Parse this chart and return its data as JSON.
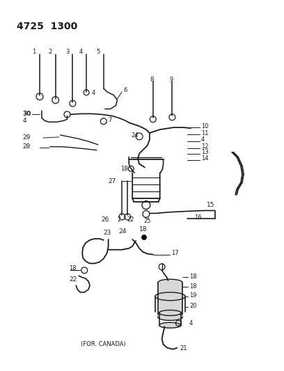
{
  "title": "4725  1300",
  "background_color": "#ffffff",
  "line_color": "#1a1a1a",
  "text_color": "#1a1a1a",
  "canada_label": "(FOR. CANADA)"
}
